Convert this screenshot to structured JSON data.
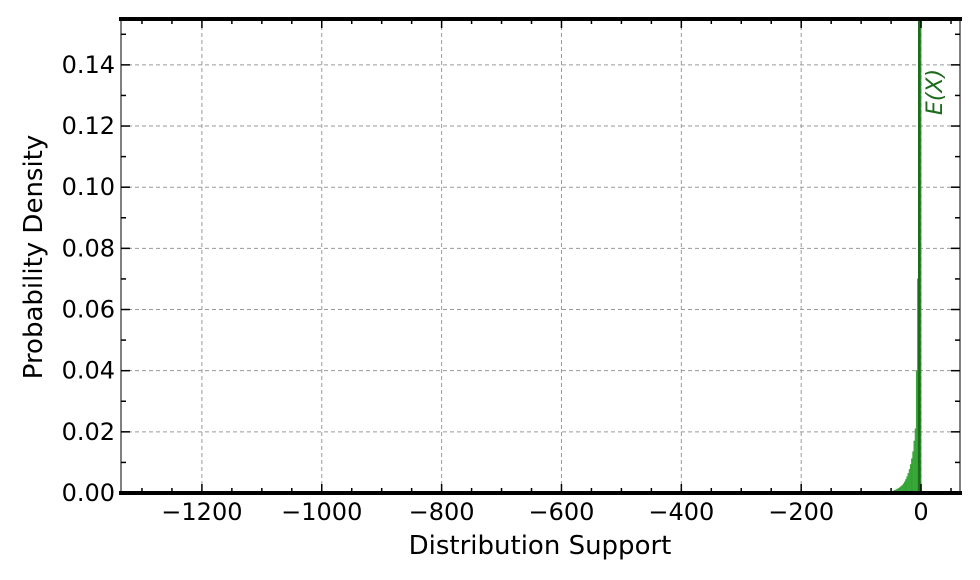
{
  "chart_data": {
    "type": "bar",
    "title": "",
    "xlabel": "Distribution Support",
    "ylabel": "Probability Density",
    "xlim": [
      -1335,
      65
    ],
    "ylim": [
      0,
      0.155
    ],
    "xticks": [
      -1200,
      -1000,
      -800,
      -600,
      -400,
      -200,
      0
    ],
    "xtick_labels": [
      "−1200",
      "−1000",
      "−800",
      "−600",
      "−400",
      "−200",
      "0"
    ],
    "yticks": [
      0.0,
      0.02,
      0.04,
      0.06,
      0.08,
      0.1,
      0.12,
      0.14
    ],
    "ytick_labels": [
      "0.00",
      "0.02",
      "0.04",
      "0.06",
      "0.08",
      "0.10",
      "0.12",
      "0.14"
    ],
    "grid": true,
    "histogram": {
      "bin_width": 2,
      "bin_starts": [
        -56,
        -54,
        -52,
        -50,
        -48,
        -46,
        -44,
        -42,
        -40,
        -38,
        -36,
        -34,
        -32,
        -30,
        -28,
        -26,
        -24,
        -22,
        -20,
        -18,
        -16,
        -14,
        -12,
        -10,
        -8,
        -6,
        -4,
        -2
      ],
      "values": [
        0.0002,
        0.0003,
        0.0004,
        0.0005,
        0.0006,
        0.0007,
        0.0009,
        0.0011,
        0.0013,
        0.0015,
        0.0018,
        0.0021,
        0.0025,
        0.003,
        0.0036,
        0.0044,
        0.0053,
        0.0064,
        0.0077,
        0.0093,
        0.0112,
        0.0135,
        0.017,
        0.021,
        0.04,
        0.07,
        0.11,
        0.155
      ],
      "color": "#2ca02c"
    },
    "mean_line": {
      "x": -3,
      "label": "E(X)",
      "color": "#1e6b1e"
    },
    "bar_color": "#2ca02c"
  }
}
